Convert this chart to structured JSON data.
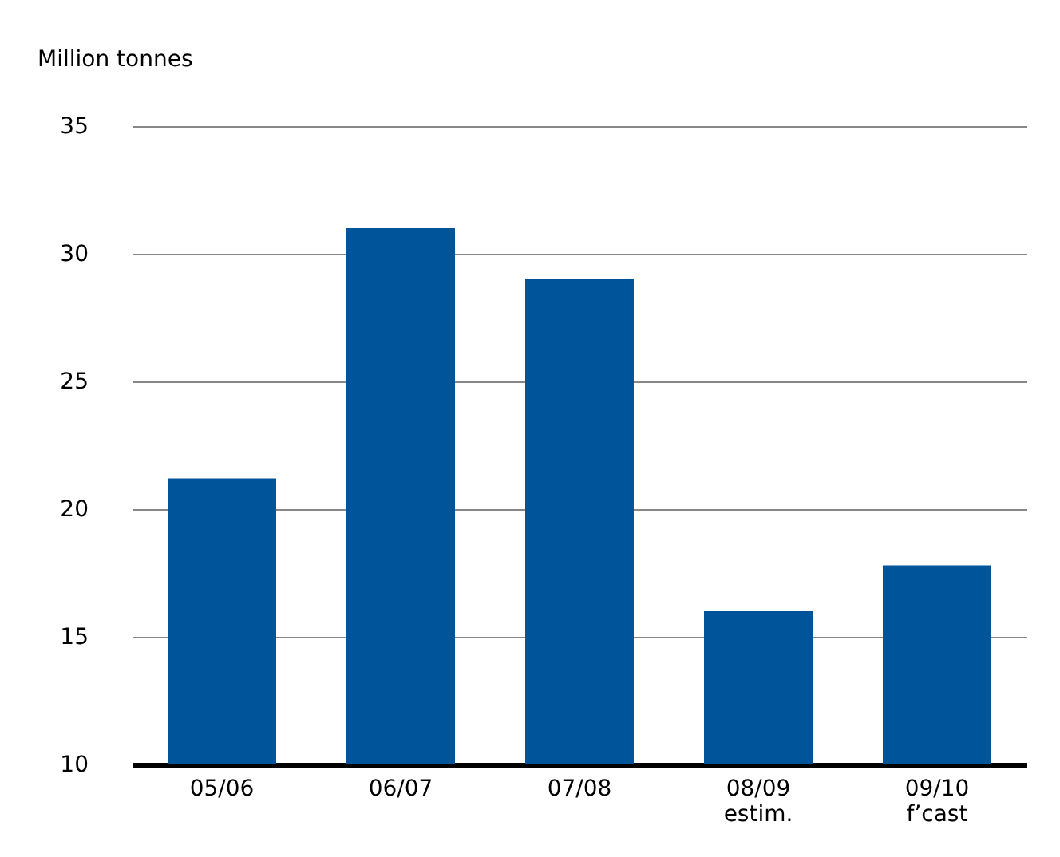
{
  "chart_data": {
    "type": "bar",
    "ylabel": "Million tonnes",
    "categories": [
      "05/06",
      "06/07",
      "07/08",
      "08/09\nestim.",
      "09/10\nf’cast"
    ],
    "values": [
      21.2,
      31.0,
      29.0,
      16.0,
      17.8
    ],
    "color": "#00549a",
    "ylim": [
      10,
      35
    ],
    "yticks": [
      10,
      15,
      20,
      25,
      30,
      35
    ],
    "grid": "y"
  }
}
